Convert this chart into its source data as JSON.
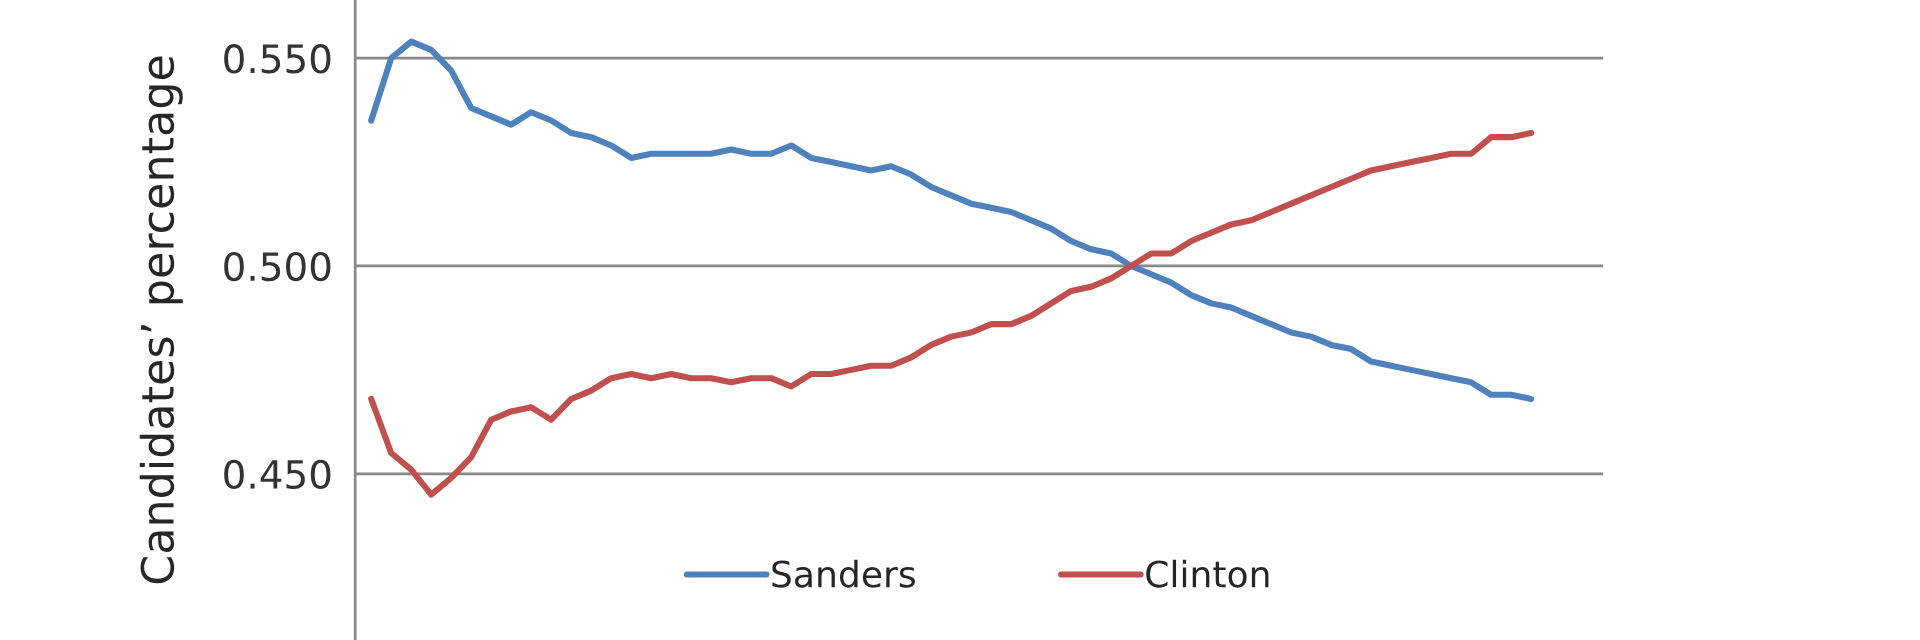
{
  "chart_data": {
    "type": "line",
    "ylabel": "Candidates’ percentage",
    "categories": [
      null,
      null,
      null,
      null,
      null,
      null,
      null,
      null,
      null,
      null,
      null,
      null,
      null,
      null,
      null,
      null,
      null,
      null,
      null,
      null,
      null,
      null,
      null,
      null,
      null,
      null,
      null,
      null,
      null,
      null,
      null,
      null,
      null,
      null,
      null,
      null,
      null,
      null,
      null,
      null,
      null,
      null,
      null,
      null,
      null,
      null,
      null,
      null,
      null,
      null,
      null,
      null,
      null,
      null,
      null,
      null,
      null,
      null,
      null
    ],
    "series": [
      {
        "name": "Sanders",
        "color": "#4f81bd",
        "values": [
          0.535,
          0.55,
          0.554,
          0.552,
          0.547,
          0.538,
          0.536,
          0.534,
          0.537,
          0.535,
          0.532,
          0.531,
          0.529,
          0.526,
          0.527,
          0.527,
          0.527,
          0.527,
          0.528,
          0.527,
          0.527,
          0.529,
          0.526,
          0.525,
          0.524,
          0.523,
          0.524,
          0.522,
          0.519,
          0.517,
          0.515,
          0.514,
          0.513,
          0.511,
          0.509,
          0.506,
          0.504,
          0.503,
          0.5,
          0.498,
          0.496,
          0.493,
          0.491,
          0.49,
          0.488,
          0.486,
          0.484,
          0.483,
          0.481,
          0.48,
          0.477,
          0.476,
          0.475,
          0.474,
          0.473,
          0.472,
          0.469,
          0.469,
          0.468
        ]
      },
      {
        "name": "Clinton",
        "color": "#c0504d",
        "values": [
          0.468,
          0.455,
          0.451,
          0.445,
          0.449,
          0.454,
          0.463,
          0.465,
          0.466,
          0.463,
          0.468,
          0.47,
          0.473,
          0.474,
          0.473,
          0.474,
          0.473,
          0.473,
          0.472,
          0.473,
          0.473,
          0.471,
          0.474,
          0.474,
          0.475,
          0.476,
          0.476,
          0.478,
          0.481,
          0.483,
          0.484,
          0.486,
          0.486,
          0.488,
          0.491,
          0.494,
          0.495,
          0.497,
          0.5,
          0.503,
          0.503,
          0.506,
          0.508,
          0.51,
          0.511,
          0.513,
          0.515,
          0.517,
          0.519,
          0.521,
          0.523,
          0.524,
          0.525,
          0.526,
          0.527,
          0.527,
          0.531,
          0.531,
          0.532
        ]
      }
    ],
    "ylim": [
      0.41,
      0.564
    ],
    "yticks": [
      {
        "value": 0.45,
        "label": "0.450"
      },
      {
        "value": 0.5,
        "label": "0.500"
      },
      {
        "value": 0.55,
        "label": "0.550"
      }
    ],
    "grid": "y",
    "legend": "bottom",
    "line_style": "solid"
  }
}
